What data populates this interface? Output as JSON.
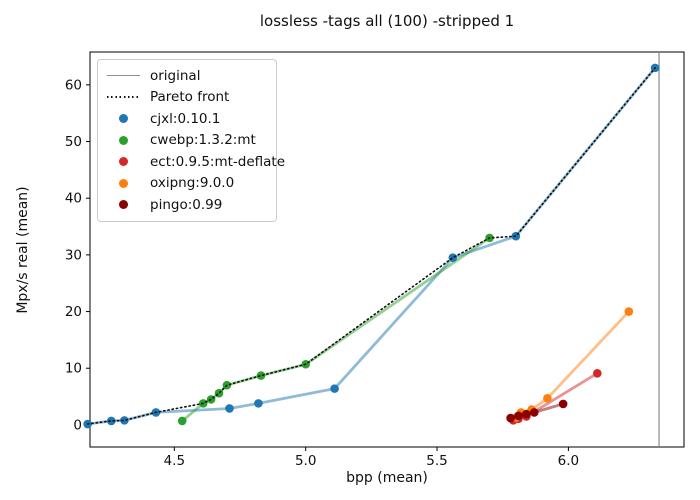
{
  "title": "lossless -tags all (100) -stripped 1",
  "chart_data": {
    "type": "line",
    "title": "lossless -tags all (100) -stripped 1",
    "xlabel": "bpp (mean)",
    "ylabel": "Mpx/s real (mean)",
    "xlim": [
      4.179,
      6.44
    ],
    "ylim": [
      -3.9,
      65.8
    ],
    "grid": false,
    "legend_position": "upper-left",
    "xticks": [
      {
        "v": 4.5,
        "label": "4.5"
      },
      {
        "v": 5.0,
        "label": "5.0"
      },
      {
        "v": 5.5,
        "label": "5.5"
      },
      {
        "v": 6.0,
        "label": "6.0"
      }
    ],
    "yticks": [
      {
        "v": 0,
        "label": "0"
      },
      {
        "v": 10,
        "label": "10"
      },
      {
        "v": 20,
        "label": "20"
      },
      {
        "v": 30,
        "label": "30"
      },
      {
        "v": 40,
        "label": "40"
      },
      {
        "v": 50,
        "label": "50"
      },
      {
        "v": 60,
        "label": "60"
      }
    ],
    "original_line": {
      "label": "original",
      "x": 6.345,
      "color": "#8c8c8c"
    },
    "pareto": {
      "label": "Pareto front",
      "color": "#111111",
      "points": [
        [
          4.17,
          0.15
        ],
        [
          4.26,
          0.7
        ],
        [
          4.31,
          0.8
        ],
        [
          4.43,
          2.2
        ],
        [
          4.61,
          3.8
        ],
        [
          4.64,
          4.5
        ],
        [
          4.67,
          5.6
        ],
        [
          4.7,
          7.0
        ],
        [
          4.83,
          8.7
        ],
        [
          5.0,
          10.7
        ],
        [
          5.56,
          29.5
        ],
        [
          5.7,
          33.0
        ],
        [
          5.8,
          33.3
        ],
        [
          6.33,
          63.0
        ]
      ]
    },
    "series": [
      {
        "name": "cjxl:0.10.1",
        "color": "#1f77b4",
        "points": [
          [
            4.17,
            0.15
          ],
          [
            4.26,
            0.7
          ],
          [
            4.31,
            0.8
          ],
          [
            4.43,
            2.2
          ],
          [
            4.71,
            2.9
          ],
          [
            4.82,
            3.8
          ],
          [
            5.11,
            6.4
          ],
          [
            5.56,
            29.5
          ],
          [
            5.8,
            33.3
          ],
          [
            6.33,
            63.0
          ]
        ]
      },
      {
        "name": "cwebp:1.3.2:mt",
        "color": "#2ca02c",
        "points": [
          [
            4.53,
            0.7
          ],
          [
            4.61,
            3.8
          ],
          [
            4.64,
            4.5
          ],
          [
            4.67,
            5.6
          ],
          [
            4.7,
            7.0
          ],
          [
            4.83,
            8.7
          ],
          [
            5.0,
            10.7
          ],
          [
            5.7,
            33.0
          ]
        ]
      },
      {
        "name": "ect:0.9.5:mt-deflate",
        "color": "#d62728",
        "points": [
          [
            5.79,
            0.8
          ],
          [
            5.81,
            1.1
          ],
          [
            5.84,
            1.5
          ],
          [
            6.11,
            9.1
          ]
        ]
      },
      {
        "name": "oxipng:9.0.0",
        "color": "#ff7f0e",
        "points": [
          [
            5.8,
            1.3
          ],
          [
            5.82,
            2.2
          ],
          [
            5.86,
            2.7
          ],
          [
            5.92,
            4.7
          ],
          [
            6.23,
            20.0
          ]
        ]
      },
      {
        "name": "pingo:0.99",
        "color": "#8b0000",
        "points": [
          [
            5.78,
            1.2
          ],
          [
            5.81,
            1.6
          ],
          [
            5.84,
            1.9
          ],
          [
            5.87,
            2.2
          ],
          [
            5.98,
            3.7
          ]
        ]
      }
    ]
  }
}
